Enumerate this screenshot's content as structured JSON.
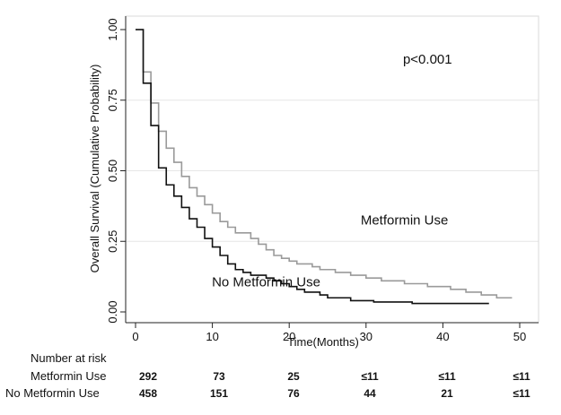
{
  "chart_data": {
    "type": "line",
    "title": "",
    "xlabel": "Time(Months)",
    "ylabel": "Overall Survival (Cumulative Probability)",
    "xlim": [
      0,
      50
    ],
    "ylim": [
      0,
      1
    ],
    "xticks": [
      "0",
      "10",
      "20",
      "30",
      "40",
      "50"
    ],
    "yticks": [
      "0.00",
      "0.25",
      "0.50",
      "0.75",
      "1.00"
    ],
    "grid": "horizontal",
    "annotations": [
      {
        "text": "p<0.001",
        "x": 38,
        "y": 0.88
      },
      {
        "text": "Metformin Use",
        "x": 35,
        "y": 0.31
      },
      {
        "text": "No Metformin Use",
        "x": 17,
        "y": 0.09
      }
    ],
    "series": [
      {
        "name": "Metformin Use",
        "color": "#9a9a9a",
        "step_points": [
          [
            0,
            1.0
          ],
          [
            1,
            0.85
          ],
          [
            2,
            0.74
          ],
          [
            3,
            0.64
          ],
          [
            4,
            0.58
          ],
          [
            5,
            0.53
          ],
          [
            6,
            0.48
          ],
          [
            7,
            0.44
          ],
          [
            8,
            0.41
          ],
          [
            9,
            0.38
          ],
          [
            10,
            0.35
          ],
          [
            11,
            0.32
          ],
          [
            12,
            0.3
          ],
          [
            13,
            0.28
          ],
          [
            15,
            0.26
          ],
          [
            16,
            0.24
          ],
          [
            17,
            0.22
          ],
          [
            18,
            0.2
          ],
          [
            19,
            0.19
          ],
          [
            20,
            0.18
          ],
          [
            21,
            0.17
          ],
          [
            23,
            0.16
          ],
          [
            24,
            0.15
          ],
          [
            26,
            0.14
          ],
          [
            28,
            0.13
          ],
          [
            30,
            0.12
          ],
          [
            32,
            0.11
          ],
          [
            35,
            0.1
          ],
          [
            38,
            0.09
          ],
          [
            41,
            0.08
          ],
          [
            43,
            0.07
          ],
          [
            45,
            0.06
          ],
          [
            47,
            0.05
          ],
          [
            49,
            0.05
          ]
        ]
      },
      {
        "name": "No Metformin Use",
        "color": "#111111",
        "step_points": [
          [
            0,
            1.0
          ],
          [
            1,
            0.81
          ],
          [
            2,
            0.66
          ],
          [
            3,
            0.51
          ],
          [
            4,
            0.45
          ],
          [
            5,
            0.41
          ],
          [
            6,
            0.37
          ],
          [
            7,
            0.33
          ],
          [
            8,
            0.3
          ],
          [
            9,
            0.26
          ],
          [
            10,
            0.23
          ],
          [
            11,
            0.2
          ],
          [
            12,
            0.17
          ],
          [
            13,
            0.15
          ],
          [
            14,
            0.14
          ],
          [
            15,
            0.13
          ],
          [
            17,
            0.12
          ],
          [
            18,
            0.11
          ],
          [
            19,
            0.1
          ],
          [
            20,
            0.09
          ],
          [
            21,
            0.08
          ],
          [
            22,
            0.07
          ],
          [
            24,
            0.06
          ],
          [
            25,
            0.05
          ],
          [
            28,
            0.04
          ],
          [
            31,
            0.035
          ],
          [
            36,
            0.03
          ],
          [
            40,
            0.03
          ],
          [
            46,
            0.03
          ]
        ]
      }
    ]
  },
  "risk_table": {
    "title": "Number at risk",
    "times": [
      0,
      10,
      20,
      30,
      40,
      50
    ],
    "rows": [
      {
        "label": "Metformin Use",
        "values": [
          "292",
          "73",
          "25",
          "≤11",
          "≤11",
          "≤11"
        ]
      },
      {
        "label": "No Metformin Use",
        "values": [
          "458",
          "151",
          "76",
          "44",
          "21",
          "≤11"
        ]
      }
    ]
  }
}
